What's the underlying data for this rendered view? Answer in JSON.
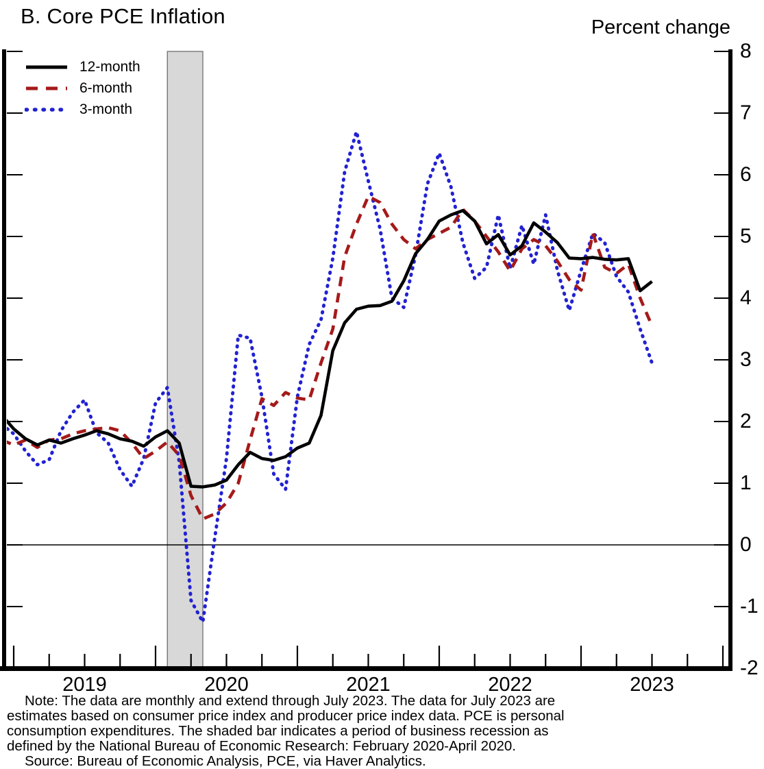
{
  "title": "B. Core PCE Inflation",
  "right_axis_unit": "Percent change",
  "legend": [
    {
      "label": "12-month",
      "style": "solid",
      "color": "#000000"
    },
    {
      "label": "6-month",
      "style": "dashed",
      "color": "#a51a1a"
    },
    {
      "label": "3-month",
      "style": "dotted",
      "color": "#2222d2"
    }
  ],
  "recession_band": {
    "start": "2020-02",
    "end": "2020-05",
    "fill": "#d8d8d8",
    "edge": "#6e6e6e"
  },
  "y_ticks": [
    8,
    7,
    6,
    5,
    4,
    3,
    2,
    1,
    0,
    -1,
    -2
  ],
  "x_year_labels": [
    "2019",
    "2020",
    "2021",
    "2022",
    "2023"
  ],
  "notes": [
    "Note: The data are monthly and extend through July 2023. The data for July 2023 are",
    "estimates based on consumer price index and producer price index data. PCE is personal",
    "consumption expenditures. The shaded bar indicates a period of business recession as",
    "defined by the National Bureau of Economic Research: February 2020-April 2020.",
    "Source: Bureau of Economic Analysis, PCE, via Haver Analytics."
  ],
  "chart_data": {
    "type": "line",
    "title": "B. Core PCE Inflation",
    "ylabel": "Percent change",
    "ylim": [
      -2,
      8
    ],
    "grid": false,
    "legend_position": "top-left",
    "zero_line": true,
    "recession_shading": "2020-02 to 2020-04",
    "months": [
      "2018-12",
      "2019-01",
      "2019-02",
      "2019-03",
      "2019-04",
      "2019-05",
      "2019-06",
      "2019-07",
      "2019-08",
      "2019-09",
      "2019-10",
      "2019-11",
      "2019-12",
      "2020-01",
      "2020-02",
      "2020-03",
      "2020-04",
      "2020-05",
      "2020-06",
      "2020-07",
      "2020-08",
      "2020-09",
      "2020-10",
      "2020-11",
      "2020-12",
      "2021-01",
      "2021-02",
      "2021-03",
      "2021-04",
      "2021-05",
      "2021-06",
      "2021-07",
      "2021-08",
      "2021-09",
      "2021-10",
      "2021-11",
      "2021-12",
      "2022-01",
      "2022-02",
      "2022-03",
      "2022-04",
      "2022-05",
      "2022-06",
      "2022-07",
      "2022-08",
      "2022-09",
      "2022-10",
      "2022-11",
      "2022-12",
      "2023-01",
      "2023-02",
      "2023-03",
      "2023-04",
      "2023-05",
      "2023-06",
      "2023-07"
    ],
    "series": [
      {
        "name": "12-month",
        "color": "#000000",
        "dash": "solid",
        "values": [
          2.1,
          1.88,
          1.72,
          1.62,
          1.7,
          1.65,
          1.72,
          1.78,
          1.85,
          1.8,
          1.72,
          1.68,
          1.6,
          1.75,
          1.85,
          1.65,
          0.95,
          0.94,
          0.97,
          1.05,
          1.3,
          1.5,
          1.4,
          1.37,
          1.43,
          1.57,
          1.65,
          2.1,
          3.15,
          3.6,
          3.82,
          3.87,
          3.88,
          3.95,
          4.28,
          4.72,
          4.95,
          5.25,
          5.35,
          5.42,
          5.25,
          4.88,
          5.03,
          4.7,
          4.85,
          5.22,
          5.07,
          4.9,
          4.65,
          4.64,
          4.66,
          4.63,
          4.62,
          4.64,
          4.12,
          4.27
        ]
      },
      {
        "name": "6-month",
        "color": "#a51a1a",
        "dash": "dashed",
        "values": [
          1.7,
          1.62,
          1.7,
          1.58,
          1.7,
          1.72,
          1.8,
          1.85,
          1.88,
          1.9,
          1.85,
          1.65,
          1.4,
          1.52,
          1.67,
          1.45,
          0.8,
          0.42,
          0.5,
          0.68,
          1.0,
          1.7,
          2.37,
          2.26,
          2.47,
          2.38,
          2.35,
          2.95,
          3.5,
          4.67,
          5.2,
          5.65,
          5.55,
          5.2,
          4.95,
          4.8,
          4.95,
          5.05,
          5.15,
          5.44,
          5.25,
          5.0,
          4.75,
          4.44,
          4.8,
          4.95,
          4.85,
          4.6,
          4.3,
          4.13,
          5.05,
          4.5,
          4.4,
          4.55,
          4.0,
          3.55
        ]
      },
      {
        "name": "3-month",
        "color": "#2222d2",
        "dash": "dotted",
        "values": [
          1.95,
          1.8,
          1.52,
          1.3,
          1.38,
          1.85,
          2.15,
          2.35,
          1.82,
          1.65,
          1.22,
          0.95,
          1.4,
          2.3,
          2.55,
          1.35,
          -0.9,
          -1.25,
          0.1,
          1.4,
          3.4,
          3.35,
          2.4,
          1.15,
          0.9,
          2.4,
          3.25,
          3.65,
          4.65,
          6.05,
          6.7,
          5.9,
          5.12,
          4.0,
          3.85,
          4.7,
          5.85,
          6.35,
          5.8,
          4.9,
          4.32,
          4.5,
          5.35,
          4.48,
          5.18,
          4.55,
          5.35,
          4.45,
          3.8,
          4.45,
          5.05,
          4.9,
          4.35,
          4.1,
          3.5,
          2.95
        ]
      }
    ]
  }
}
